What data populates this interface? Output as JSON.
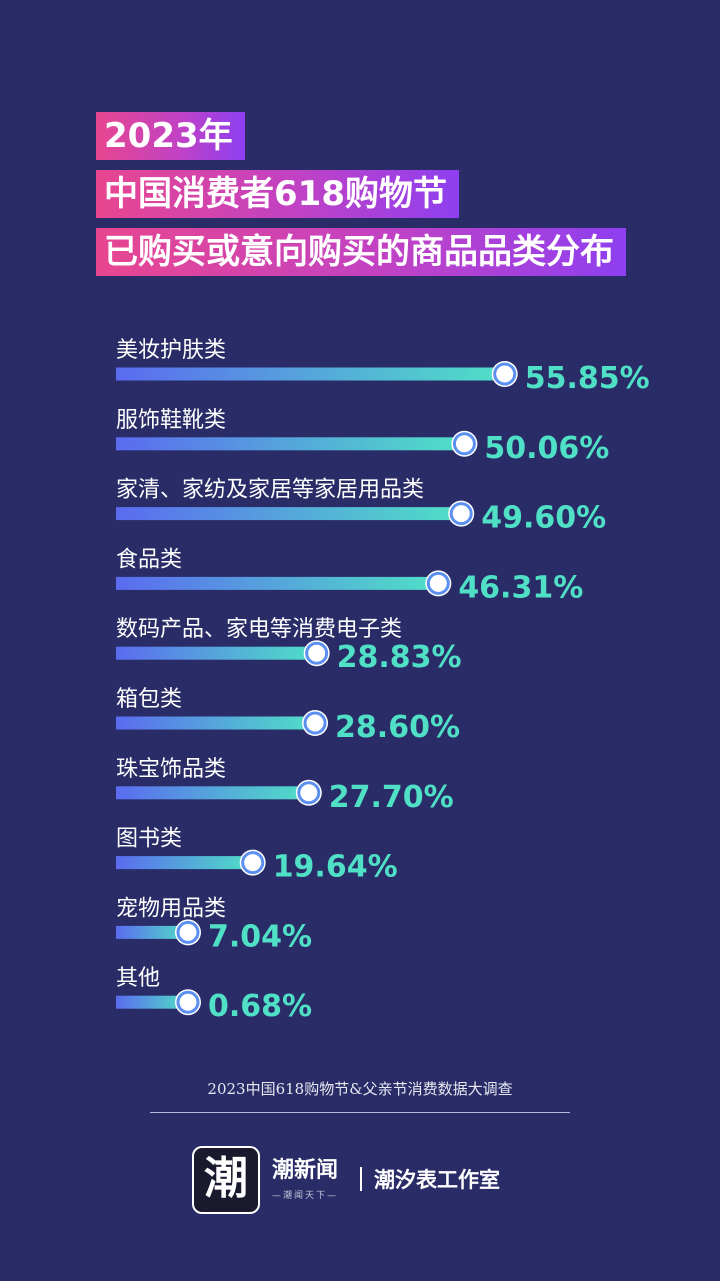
{
  "title_lines": [
    "2023年",
    "中国消费者618购物节",
    "已购买或意向购买的商品品类分布"
  ],
  "chart_data": {
    "type": "bar",
    "orientation": "horizontal",
    "categories": [
      "美妆护肤类",
      "服饰鞋靴类",
      "家清、家纺及家居等家居用品类",
      "食品类",
      "数码产品、家电等消费电子类",
      "箱包类",
      "珠宝饰品类",
      "图书类",
      "宠物用品类",
      "其他"
    ],
    "values": [
      55.85,
      50.06,
      49.6,
      46.31,
      28.83,
      28.6,
      27.7,
      19.64,
      7.04,
      0.68
    ],
    "value_labels": [
      "55.85%",
      "50.06%",
      "49.60%",
      "46.31%",
      "28.83%",
      "28.60%",
      "27.70%",
      "19.64%",
      "7.04%",
      "0.68%"
    ],
    "unit": "%",
    "colors": {
      "bar_start": "#5b6bf0",
      "bar_end": "#4fe0c6",
      "value_text": "#4fe0c6"
    }
  },
  "footer": {
    "source": "2023中国618购物节&父亲节消费数据大调查",
    "logo_char": "潮",
    "brand": "潮新闻",
    "slogan": "—潮闻天下—",
    "studio": "潮汐表工作室"
  }
}
